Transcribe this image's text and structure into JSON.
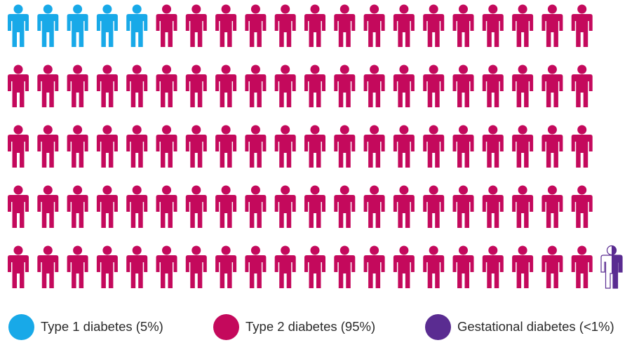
{
  "chart_data": {
    "type": "pictogram",
    "rows": 5,
    "columns": 20,
    "unit": "person",
    "counts": {
      "type1": 5,
      "type2": 94,
      "gestational": 1
    },
    "series": [
      {
        "name": "Type 1 diabetes (5%)",
        "color": "#18a9e8"
      },
      {
        "name": "Type 2 diabetes (95%)",
        "color": "#c4095c"
      },
      {
        "name": "Gestational diabetes (<1%)",
        "color": "#5a2c91"
      }
    ],
    "special_last_icon": "half-filled-gestational"
  },
  "legend": {
    "type1": "Type 1 diabetes (5%)",
    "type2": "Type 2 diabetes (95%)",
    "gestational": "Gestational diabetes (<1%)"
  },
  "colors": {
    "type1": "#18a9e8",
    "type2": "#c4095c",
    "gestational": "#5a2c91"
  }
}
